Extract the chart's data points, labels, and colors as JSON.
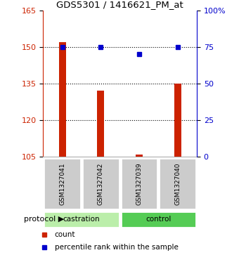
{
  "title": "GDS5301 / 1416621_PM_at",
  "samples": [
    "GSM1327041",
    "GSM1327042",
    "GSM1327039",
    "GSM1327040"
  ],
  "count_values": [
    152,
    132,
    106,
    135
  ],
  "percentile_values": [
    75,
    75,
    70,
    75
  ],
  "ylim_left": [
    105,
    165
  ],
  "ylim_right": [
    0,
    100
  ],
  "yticks_left": [
    105,
    120,
    135,
    150,
    165
  ],
  "yticks_right": [
    0,
    25,
    50,
    75,
    100
  ],
  "ytick_labels_right": [
    "0",
    "25",
    "50",
    "75",
    "100%"
  ],
  "hgrid_values": [
    120,
    135,
    150
  ],
  "bar_color": "#cc2200",
  "dot_color": "#0000cc",
  "castration_color": "#bbeeaa",
  "control_color": "#55cc55",
  "sample_box_color": "#cccccc",
  "protocol_arrow_text": "protocol",
  "legend_count_label": "count",
  "legend_percentile_label": "percentile rank within the sample",
  "bar_width": 0.18,
  "bar_bottom": 105
}
